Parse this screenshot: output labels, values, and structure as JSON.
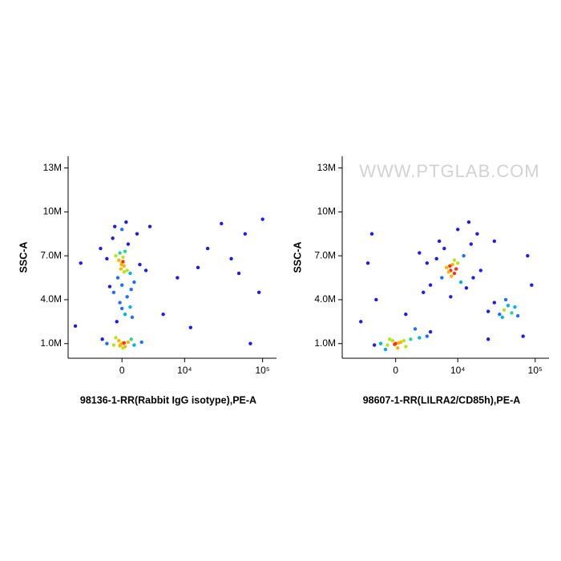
{
  "chart_data": [
    {
      "type": "scatter",
      "xscale": "biexponential",
      "xlabel": "98136-1-RR(Rabbit IgG isotype),PE-A",
      "ylabel": "SSC-A",
      "xlim": [
        -7600,
        150000
      ],
      "ylim": [
        0,
        13800000
      ],
      "xticks": [
        0,
        {
          "value": 10000,
          "label": "10⁴"
        },
        {
          "value": 100000,
          "label": "10⁵"
        }
      ],
      "yticks": [
        {
          "value": 1000000,
          "label": "1.0M"
        },
        {
          "value": 4000000,
          "label": "4.0M"
        },
        {
          "value": 7000000,
          "label": "7.0M"
        },
        {
          "value": 10000000,
          "label": "10M"
        },
        {
          "value": 13000000,
          "label": "13M"
        }
      ],
      "colormap": [
        "#1c1cf0",
        "#1f6fff",
        "#00b4e6",
        "#2ed48a",
        "#b5e61d",
        "#ffb400",
        "#ff3010"
      ],
      "x": [
        -1500,
        -800,
        0,
        300,
        600,
        -300,
        1200,
        -2000,
        2000,
        100,
        -600,
        900,
        -100,
        200,
        -200,
        -500,
        300,
        800,
        -200,
        500,
        1000,
        0,
        -800,
        0,
        200,
        -300,
        500,
        -600,
        800,
        100,
        -100,
        300,
        -400,
        600,
        -900,
        1200,
        -1500,
        1800,
        0,
        400,
        -700,
        1500,
        -2200,
        2500,
        -1200,
        900,
        0,
        200,
        -200,
        100,
        -50,
        20000,
        40000,
        60000,
        8000,
        5000,
        90000,
        30000,
        12000,
        70000,
        -6000,
        -5000,
        15000,
        50000,
        100000,
        3000
      ],
      "y": [
        1000000.0,
        900000.0,
        1000000.0,
        800000.0,
        1100000.0,
        1200000.0,
        900000.0,
        1300000.0,
        1100000.0,
        700000.0,
        1400000.0,
        1300000.0,
        950000.0,
        1050000.0,
        850000.0,
        2500000.0,
        3000000.0,
        3500000.0,
        3800000.0,
        4200000.0,
        2800000.0,
        3400000.0,
        4500000.0,
        6500000.0,
        6300000.0,
        6700000.0,
        6000000.0,
        7000000.0,
        5800000.0,
        6900000.0,
        6100000.0,
        7300000.0,
        5500000.0,
        7800000.0,
        8200000.0,
        5200000.0,
        6800000.0,
        6400000.0,
        8800000.0,
        9300000.0,
        9000000.0,
        8500000.0,
        7500000.0,
        6000000.0,
        4900000.0,
        4700000.0,
        5000000.0,
        5900000.0,
        7200000.0,
        6600000.0,
        6400000.0,
        7500000.0,
        6800000.0,
        8500000.0,
        5500000.0,
        3000000.0,
        4500000.0,
        9200000.0,
        2100000.0,
        1000000.0,
        2200000.0,
        6500000.0,
        6200000.0,
        5800000.0,
        9500000.0,
        9000000.0
      ]
    },
    {
      "type": "scatter",
      "xscale": "biexponential",
      "xlabel": "98607-1-RR(LILRA2/CD85h),PE-A",
      "ylabel": "SSC-A",
      "annotation": "WWW.PTGLAB.COM",
      "xlim": [
        -7600,
        150000
      ],
      "ylim": [
        0,
        13800000
      ],
      "xticks": [
        0,
        {
          "value": 10000,
          "label": "10⁴"
        },
        {
          "value": 100000,
          "label": "10⁵"
        }
      ],
      "yticks": [
        {
          "value": 1000000,
          "label": "1.0M"
        },
        {
          "value": 4000000,
          "label": "4.0M"
        },
        {
          "value": 7000000,
          "label": "7.0M"
        },
        {
          "value": 10000000,
          "label": "10M"
        },
        {
          "value": 13000000,
          "label": "13M"
        }
      ],
      "colormap": [
        "#1c1cf0",
        "#1f6fff",
        "#00b4e6",
        "#2ed48a",
        "#b5e61d",
        "#ffb400",
        "#ff3010"
      ],
      "x": [
        -1500,
        -800,
        0,
        500,
        1000,
        -300,
        1500,
        -2200,
        2500,
        200,
        -600,
        800,
        -100,
        300,
        3500,
        -1000,
        8000,
        7000,
        9000,
        10000,
        6000,
        12000,
        5000,
        11000,
        8500,
        7500,
        9500,
        4000,
        15000,
        6500,
        3000,
        18000,
        10000,
        5500,
        13000,
        3500,
        20000,
        8000,
        14000,
        2500,
        16000,
        9000,
        8200,
        7800,
        40000,
        35000,
        45000,
        50000,
        30000,
        38000,
        55000,
        42000,
        25000,
        60000,
        -3000,
        -2000,
        1000,
        2000,
        70000,
        90000,
        -4000,
        4000,
        25000,
        30000,
        80000,
        -2500
      ],
      "y": [
        1000000.0,
        900000.0,
        1000000.0,
        1100000.0,
        800000.0,
        1200000.0,
        1300000.0,
        900000.0,
        1400000.0,
        700000.0,
        1300000.0,
        1200000.0,
        950000.0,
        1050000.0,
        1500000.0,
        600000.0,
        6000000.0,
        6200000.0,
        5800000.0,
        6500000.0,
        5500000.0,
        7000000.0,
        6800000.0,
        5200000.0,
        6400000.0,
        5900000.0,
        6100000.0,
        5000000.0,
        7800000.0,
        7500000.0,
        4500000.0,
        8500000.0,
        8800000.0,
        8000000.0,
        4800000.0,
        6500000.0,
        6000000.0,
        4200000.0,
        9300000.0,
        7200000.0,
        5500000.0,
        6700000.0,
        5600000.0,
        6300000.0,
        3300000.0,
        3000000.0,
        3600000.0,
        3100000.0,
        3800000.0,
        2800000.0,
        3500000.0,
        4000000.0,
        3200000.0,
        2900000.0,
        6500000.0,
        4000000.0,
        3000000.0,
        2000000.0,
        1500000.0,
        5000000.0,
        2500000.0,
        1800000.0,
        1300000.0,
        8000000.0,
        7000000.0,
        8500000.0
      ]
    }
  ]
}
